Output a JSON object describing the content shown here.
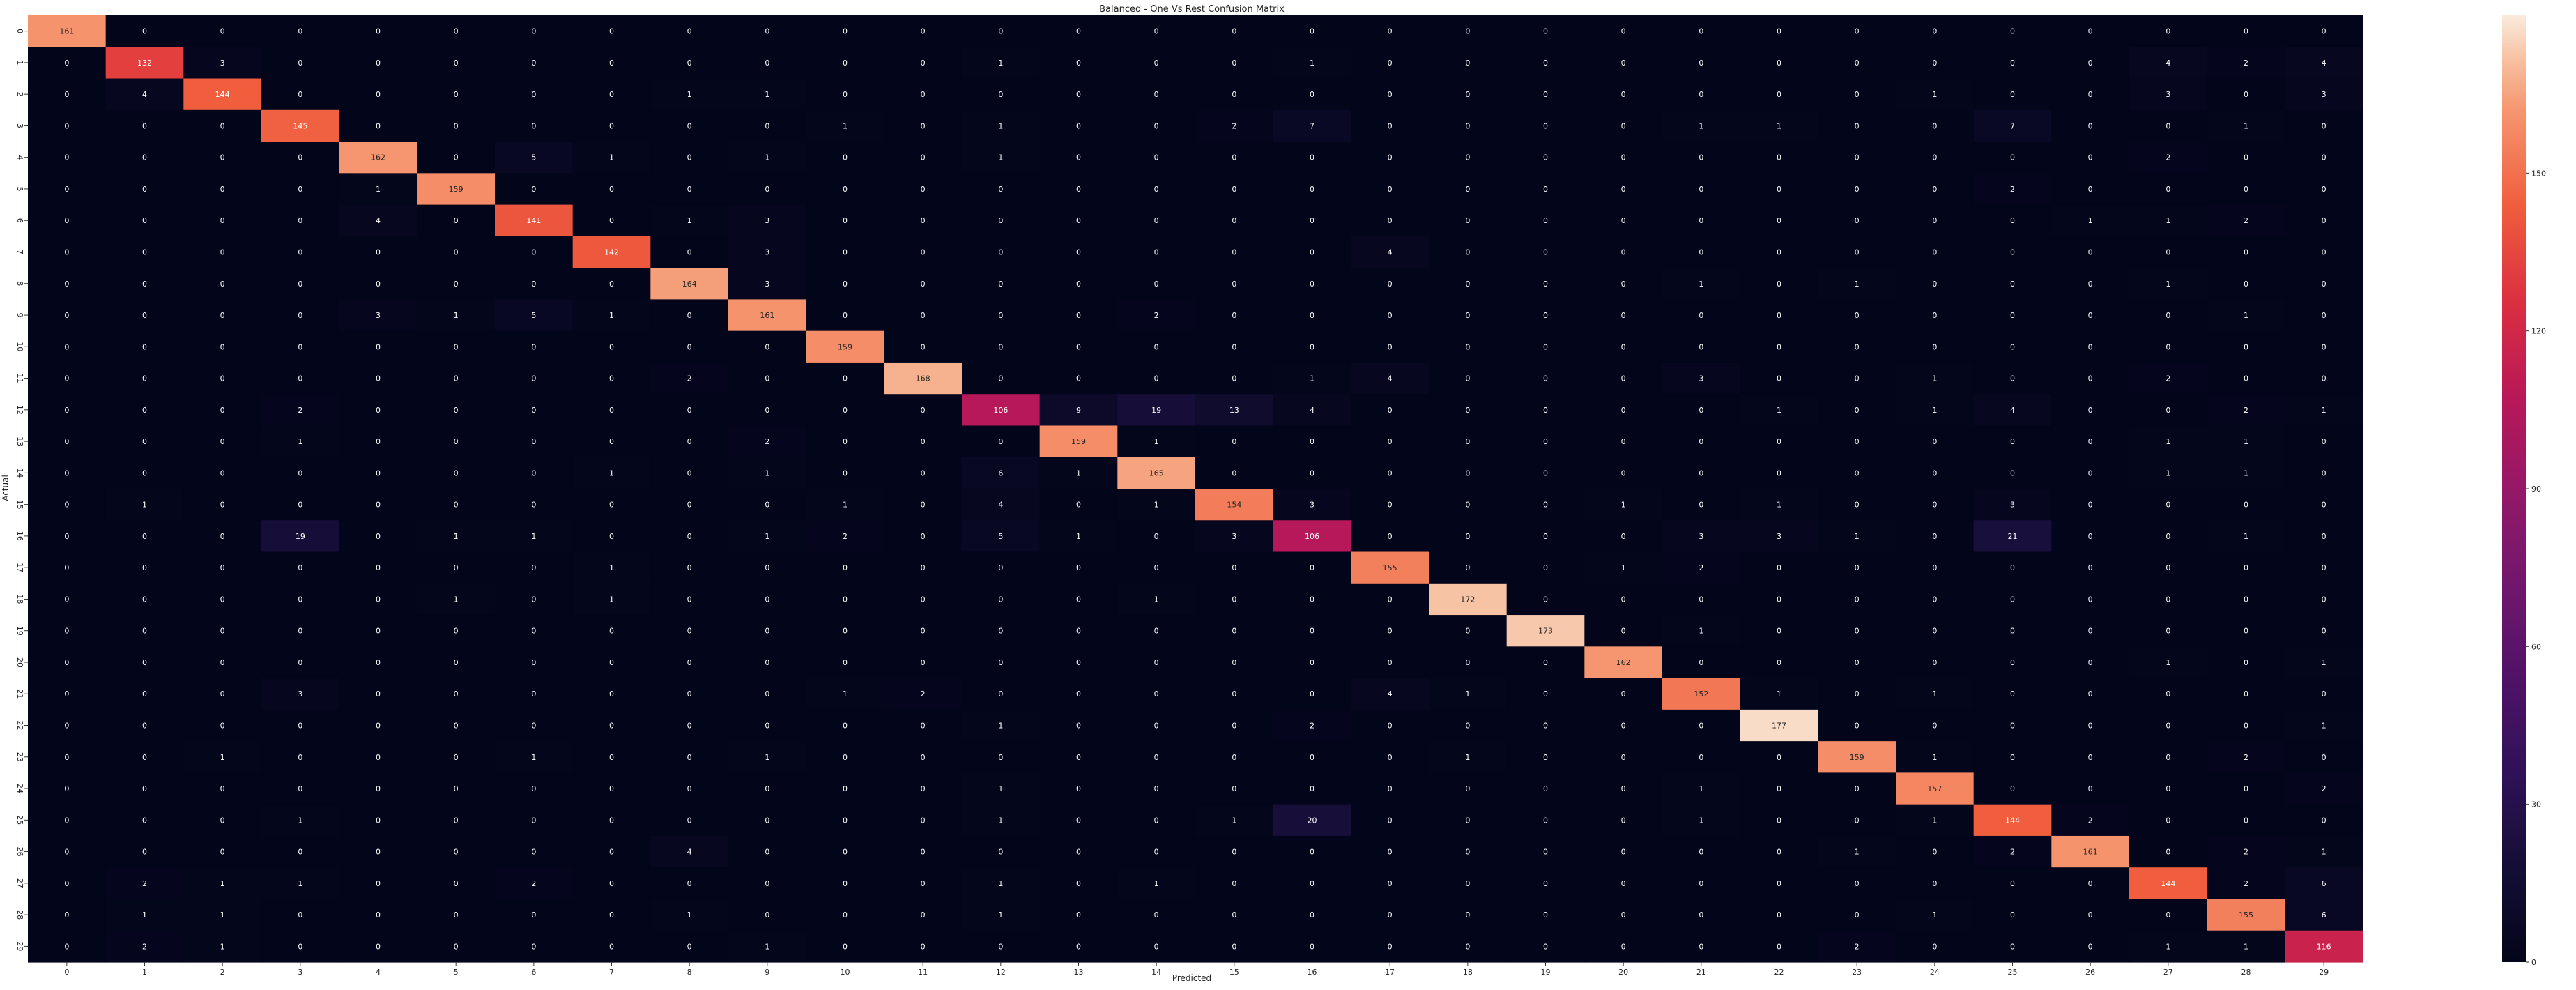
{
  "chart_data": {
    "type": "heatmap",
    "title": "Balanced - One Vs Rest Confusion Matrix",
    "xlabel": "Predicted",
    "ylabel": "Actual",
    "x_ticks": [
      "0",
      "1",
      "2",
      "3",
      "4",
      "5",
      "6",
      "7",
      "8",
      "9",
      "10",
      "11",
      "12",
      "13",
      "14",
      "15",
      "16",
      "17",
      "18",
      "19",
      "20",
      "21",
      "22",
      "23",
      "24",
      "25",
      "26",
      "27",
      "28",
      "29"
    ],
    "y_ticks": [
      "0",
      "1",
      "2",
      "3",
      "4",
      "5",
      "6",
      "7",
      "8",
      "9",
      "10",
      "11",
      "12",
      "13",
      "14",
      "15",
      "16",
      "17",
      "18",
      "19",
      "20",
      "21",
      "22",
      "23",
      "24",
      "25",
      "26",
      "27",
      "28",
      "29"
    ],
    "matrix": [
      [
        161,
        0,
        0,
        0,
        0,
        0,
        0,
        0,
        0,
        0,
        0,
        0,
        0,
        0,
        0,
        0,
        0,
        0,
        0,
        0,
        0,
        0,
        0,
        0,
        0,
        0,
        0,
        0,
        0,
        0
      ],
      [
        0,
        132,
        3,
        0,
        0,
        0,
        0,
        0,
        0,
        0,
        0,
        0,
        1,
        0,
        0,
        0,
        1,
        0,
        0,
        0,
        0,
        0,
        0,
        0,
        0,
        0,
        0,
        4,
        2,
        4
      ],
      [
        0,
        4,
        144,
        0,
        0,
        0,
        0,
        0,
        1,
        1,
        0,
        0,
        0,
        0,
        0,
        0,
        0,
        0,
        0,
        0,
        0,
        0,
        0,
        0,
        1,
        0,
        0,
        3,
        0,
        3
      ],
      [
        0,
        0,
        0,
        145,
        0,
        0,
        0,
        0,
        0,
        0,
        1,
        0,
        1,
        0,
        0,
        2,
        7,
        0,
        0,
        0,
        0,
        1,
        1,
        0,
        0,
        7,
        0,
        0,
        1,
        0
      ],
      [
        0,
        0,
        0,
        0,
        162,
        0,
        5,
        1,
        0,
        1,
        0,
        0,
        1,
        0,
        0,
        0,
        0,
        0,
        0,
        0,
        0,
        0,
        0,
        0,
        0,
        0,
        0,
        2,
        0,
        0
      ],
      [
        0,
        0,
        0,
        0,
        1,
        159,
        0,
        0,
        0,
        0,
        0,
        0,
        0,
        0,
        0,
        0,
        0,
        0,
        0,
        0,
        0,
        0,
        0,
        0,
        0,
        2,
        0,
        0,
        0,
        0
      ],
      [
        0,
        0,
        0,
        0,
        4,
        0,
        141,
        0,
        1,
        3,
        0,
        0,
        0,
        0,
        0,
        0,
        0,
        0,
        0,
        0,
        0,
        0,
        0,
        0,
        0,
        0,
        1,
        1,
        2,
        0
      ],
      [
        0,
        0,
        0,
        0,
        0,
        0,
        0,
        142,
        0,
        3,
        0,
        0,
        0,
        0,
        0,
        0,
        0,
        4,
        0,
        0,
        0,
        0,
        0,
        0,
        0,
        0,
        0,
        0,
        0,
        0
      ],
      [
        0,
        0,
        0,
        0,
        0,
        0,
        0,
        0,
        164,
        3,
        0,
        0,
        0,
        0,
        0,
        0,
        0,
        0,
        0,
        0,
        0,
        1,
        0,
        1,
        0,
        0,
        0,
        1,
        0,
        0
      ],
      [
        0,
        0,
        0,
        0,
        3,
        1,
        5,
        1,
        0,
        161,
        0,
        0,
        0,
        0,
        2,
        0,
        0,
        0,
        0,
        0,
        0,
        0,
        0,
        0,
        0,
        0,
        0,
        0,
        1,
        0
      ],
      [
        0,
        0,
        0,
        0,
        0,
        0,
        0,
        0,
        0,
        0,
        159,
        0,
        0,
        0,
        0,
        0,
        0,
        0,
        0,
        0,
        0,
        0,
        0,
        0,
        0,
        0,
        0,
        0,
        0,
        0
      ],
      [
        0,
        0,
        0,
        0,
        0,
        0,
        0,
        0,
        2,
        0,
        0,
        168,
        0,
        0,
        0,
        0,
        1,
        4,
        0,
        0,
        0,
        3,
        0,
        0,
        1,
        0,
        0,
        2,
        0,
        0
      ],
      [
        0,
        0,
        0,
        2,
        0,
        0,
        0,
        0,
        0,
        0,
        0,
        0,
        106,
        9,
        19,
        13,
        4,
        0,
        0,
        0,
        0,
        0,
        1,
        0,
        1,
        4,
        0,
        0,
        2,
        1
      ],
      [
        0,
        0,
        0,
        1,
        0,
        0,
        0,
        0,
        0,
        2,
        0,
        0,
        0,
        159,
        1,
        0,
        0,
        0,
        0,
        0,
        0,
        0,
        0,
        0,
        0,
        0,
        0,
        1,
        1,
        0
      ],
      [
        0,
        0,
        0,
        0,
        0,
        0,
        0,
        1,
        0,
        1,
        0,
        0,
        6,
        1,
        165,
        0,
        0,
        0,
        0,
        0,
        0,
        0,
        0,
        0,
        0,
        0,
        0,
        1,
        1,
        0
      ],
      [
        0,
        1,
        0,
        0,
        0,
        0,
        0,
        0,
        0,
        0,
        1,
        0,
        4,
        0,
        1,
        154,
        3,
        0,
        0,
        0,
        1,
        0,
        1,
        0,
        0,
        3,
        0,
        0,
        0,
        0
      ],
      [
        0,
        0,
        0,
        19,
        0,
        1,
        1,
        0,
        0,
        1,
        2,
        0,
        5,
        1,
        0,
        3,
        106,
        0,
        0,
        0,
        0,
        3,
        3,
        1,
        0,
        21,
        0,
        0,
        1,
        0
      ],
      [
        0,
        0,
        0,
        0,
        0,
        0,
        0,
        1,
        0,
        0,
        0,
        0,
        0,
        0,
        0,
        0,
        0,
        155,
        0,
        0,
        1,
        2,
        0,
        0,
        0,
        0,
        0,
        0,
        0,
        0
      ],
      [
        0,
        0,
        0,
        0,
        0,
        1,
        0,
        1,
        0,
        0,
        0,
        0,
        0,
        0,
        1,
        0,
        0,
        0,
        172,
        0,
        0,
        0,
        0,
        0,
        0,
        0,
        0,
        0,
        0,
        0
      ],
      [
        0,
        0,
        0,
        0,
        0,
        0,
        0,
        0,
        0,
        0,
        0,
        0,
        0,
        0,
        0,
        0,
        0,
        0,
        0,
        173,
        0,
        1,
        0,
        0,
        0,
        0,
        0,
        0,
        0,
        0
      ],
      [
        0,
        0,
        0,
        0,
        0,
        0,
        0,
        0,
        0,
        0,
        0,
        0,
        0,
        0,
        0,
        0,
        0,
        0,
        0,
        0,
        162,
        0,
        0,
        0,
        0,
        0,
        0,
        1,
        0,
        1
      ],
      [
        0,
        0,
        0,
        3,
        0,
        0,
        0,
        0,
        0,
        0,
        1,
        2,
        0,
        0,
        0,
        0,
        0,
        4,
        1,
        0,
        0,
        152,
        1,
        0,
        1,
        0,
        0,
        0,
        0,
        0
      ],
      [
        0,
        0,
        0,
        0,
        0,
        0,
        0,
        0,
        0,
        0,
        0,
        0,
        1,
        0,
        0,
        0,
        2,
        0,
        0,
        0,
        0,
        0,
        177,
        0,
        0,
        0,
        0,
        0,
        0,
        1
      ],
      [
        0,
        0,
        1,
        0,
        0,
        0,
        1,
        0,
        0,
        1,
        0,
        0,
        0,
        0,
        0,
        0,
        0,
        0,
        1,
        0,
        0,
        0,
        0,
        159,
        1,
        0,
        0,
        0,
        2,
        0
      ],
      [
        0,
        0,
        0,
        0,
        0,
        0,
        0,
        0,
        0,
        0,
        0,
        0,
        1,
        0,
        0,
        0,
        0,
        0,
        0,
        0,
        0,
        1,
        0,
        0,
        157,
        0,
        0,
        0,
        0,
        2
      ],
      [
        0,
        0,
        0,
        1,
        0,
        0,
        0,
        0,
        0,
        0,
        0,
        0,
        1,
        0,
        0,
        1,
        20,
        0,
        0,
        0,
        0,
        1,
        0,
        0,
        1,
        144,
        2,
        0,
        0,
        0
      ],
      [
        0,
        0,
        0,
        0,
        0,
        0,
        0,
        0,
        4,
        0,
        0,
        0,
        0,
        0,
        0,
        0,
        0,
        0,
        0,
        0,
        0,
        0,
        0,
        1,
        0,
        2,
        161,
        0,
        2,
        1
      ],
      [
        0,
        2,
        1,
        1,
        0,
        0,
        2,
        0,
        0,
        0,
        0,
        0,
        1,
        0,
        1,
        0,
        0,
        0,
        0,
        0,
        0,
        0,
        0,
        0,
        0,
        0,
        0,
        144,
        2,
        6
      ],
      [
        0,
        1,
        1,
        0,
        0,
        0,
        0,
        0,
        1,
        0,
        0,
        0,
        1,
        0,
        0,
        0,
        0,
        0,
        0,
        0,
        0,
        0,
        0,
        0,
        1,
        0,
        0,
        0,
        155,
        6
      ],
      [
        0,
        2,
        1,
        0,
        0,
        0,
        0,
        0,
        0,
        1,
        0,
        0,
        0,
        0,
        0,
        0,
        0,
        0,
        0,
        0,
        0,
        0,
        0,
        2,
        0,
        0,
        0,
        1,
        1,
        116
      ]
    ],
    "colorbar": {
      "min": 0,
      "max": 180,
      "ticks": [
        "0",
        "30",
        "60",
        "90",
        "120",
        "150"
      ],
      "colormap": "rocket"
    }
  }
}
